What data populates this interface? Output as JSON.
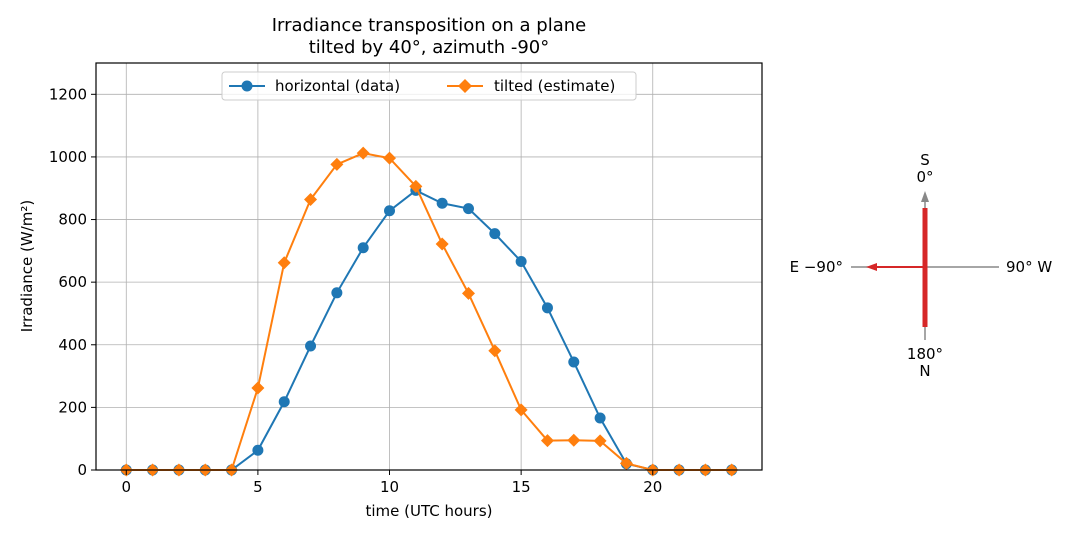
{
  "chart_data": {
    "type": "line",
    "title_line1": "Irradiance transposition on a plane",
    "title_line2": "tilted by 40°, azimuth -90°",
    "xlabel": "time (UTC hours)",
    "ylabel": "Irradiance (W/m²)",
    "xlim": [
      -1.15,
      24.15
    ],
    "ylim": [
      0,
      1300
    ],
    "xticks": [
      0,
      5,
      10,
      15,
      20
    ],
    "yticks": [
      0,
      200,
      400,
      600,
      800,
      1000,
      1200
    ],
    "grid": true,
    "legend_position": "top-center",
    "x": [
      0,
      1,
      2,
      3,
      4,
      5,
      6,
      7,
      8,
      9,
      10,
      11,
      12,
      13,
      14,
      15,
      16,
      17,
      18,
      19,
      20,
      21,
      22,
      23
    ],
    "series": [
      {
        "name": "horizontal (data)",
        "color": "#1f77b4",
        "marker": "circle",
        "values": [
          0,
          0,
          0,
          0,
          0,
          63,
          218,
          396,
          566,
          710,
          828,
          893,
          852,
          835,
          755,
          666,
          518,
          345,
          166,
          20,
          0,
          0,
          0,
          0
        ]
      },
      {
        "name": "tilted (estimate)",
        "color": "#ff7f0e",
        "marker": "diamond",
        "values": [
          0,
          0,
          0,
          0,
          0,
          262,
          662,
          864,
          976,
          1012,
          996,
          906,
          722,
          564,
          381,
          192,
          94,
          95,
          93,
          21,
          0,
          0,
          0,
          0
        ]
      }
    ]
  },
  "compass": {
    "label_s": "S",
    "label_s_deg": "0°",
    "label_n": "N",
    "label_n_deg": "180°",
    "label_e": "E −90°",
    "label_w": "90° W",
    "plane_color": "#d62728",
    "arrow_color": "#d62728",
    "axis_color": "#888888"
  }
}
